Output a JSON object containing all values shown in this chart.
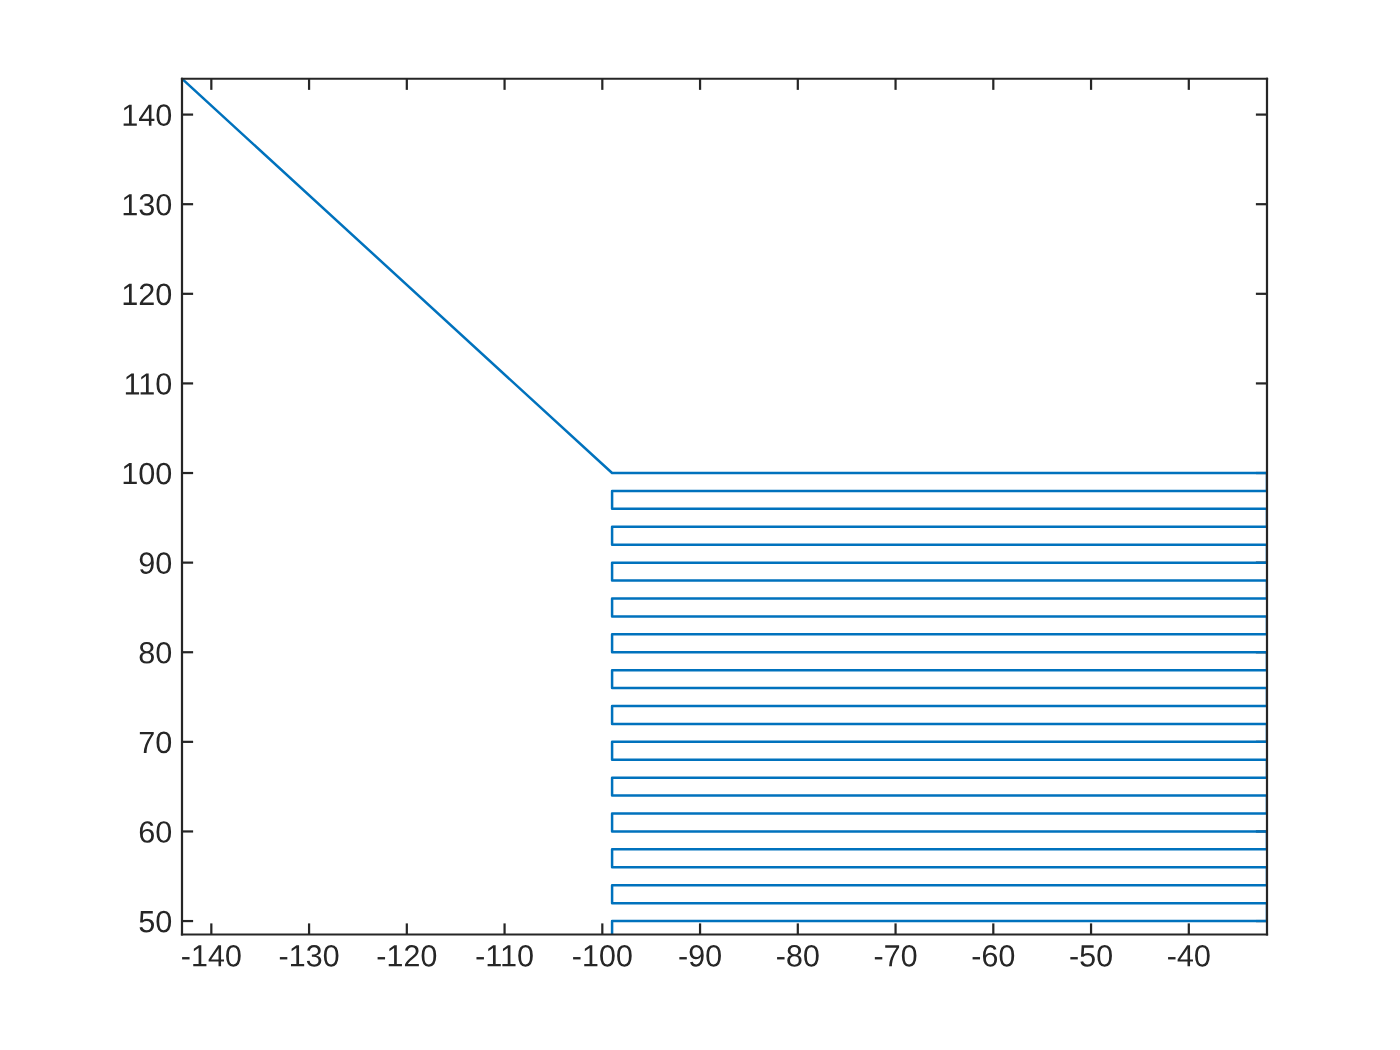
{
  "chart_data": {
    "type": "line",
    "x": [
      -143,
      -99,
      -32,
      -32,
      -99,
      -99,
      -32,
      -32,
      -99,
      -99,
      -32,
      -32,
      -99,
      -99,
      -32,
      -32,
      -99,
      -99,
      -32,
      -32,
      -99,
      -99,
      -32,
      -32,
      -99,
      -99,
      -32,
      -32,
      -99,
      -99,
      -32,
      -32,
      -99,
      -99,
      -32,
      -32,
      -99,
      -99,
      -32,
      -32,
      -99,
      -99,
      -32,
      -32,
      -99,
      -99,
      -32,
      -32,
      -99,
      -99,
      -32,
      -32,
      -99,
      -99
    ],
    "series": [
      {
        "color": "#0072bd",
        "values": [
          144,
          100,
          100,
          98,
          98,
          96,
          96,
          94,
          94,
          92,
          92,
          90,
          90,
          88,
          88,
          86,
          86,
          84,
          84,
          82,
          82,
          80,
          80,
          78,
          78,
          76,
          76,
          74,
          74,
          72,
          72,
          70,
          70,
          68,
          68,
          66,
          66,
          64,
          64,
          62,
          62,
          60,
          60,
          58,
          58,
          56,
          56,
          54,
          54,
          52,
          52,
          50,
          50,
          48.5
        ]
      }
    ],
    "xlim": [
      -143,
      -32
    ],
    "ylim": [
      48.5,
      144
    ],
    "xticks": [
      -140,
      -130,
      -120,
      -110,
      -100,
      -90,
      -80,
      -70,
      -60,
      -50,
      -40
    ],
    "yticks": [
      50,
      60,
      70,
      80,
      90,
      100,
      110,
      120,
      130,
      140
    ],
    "grid": false,
    "legend": false,
    "marker": "none",
    "line_style": "solid"
  }
}
